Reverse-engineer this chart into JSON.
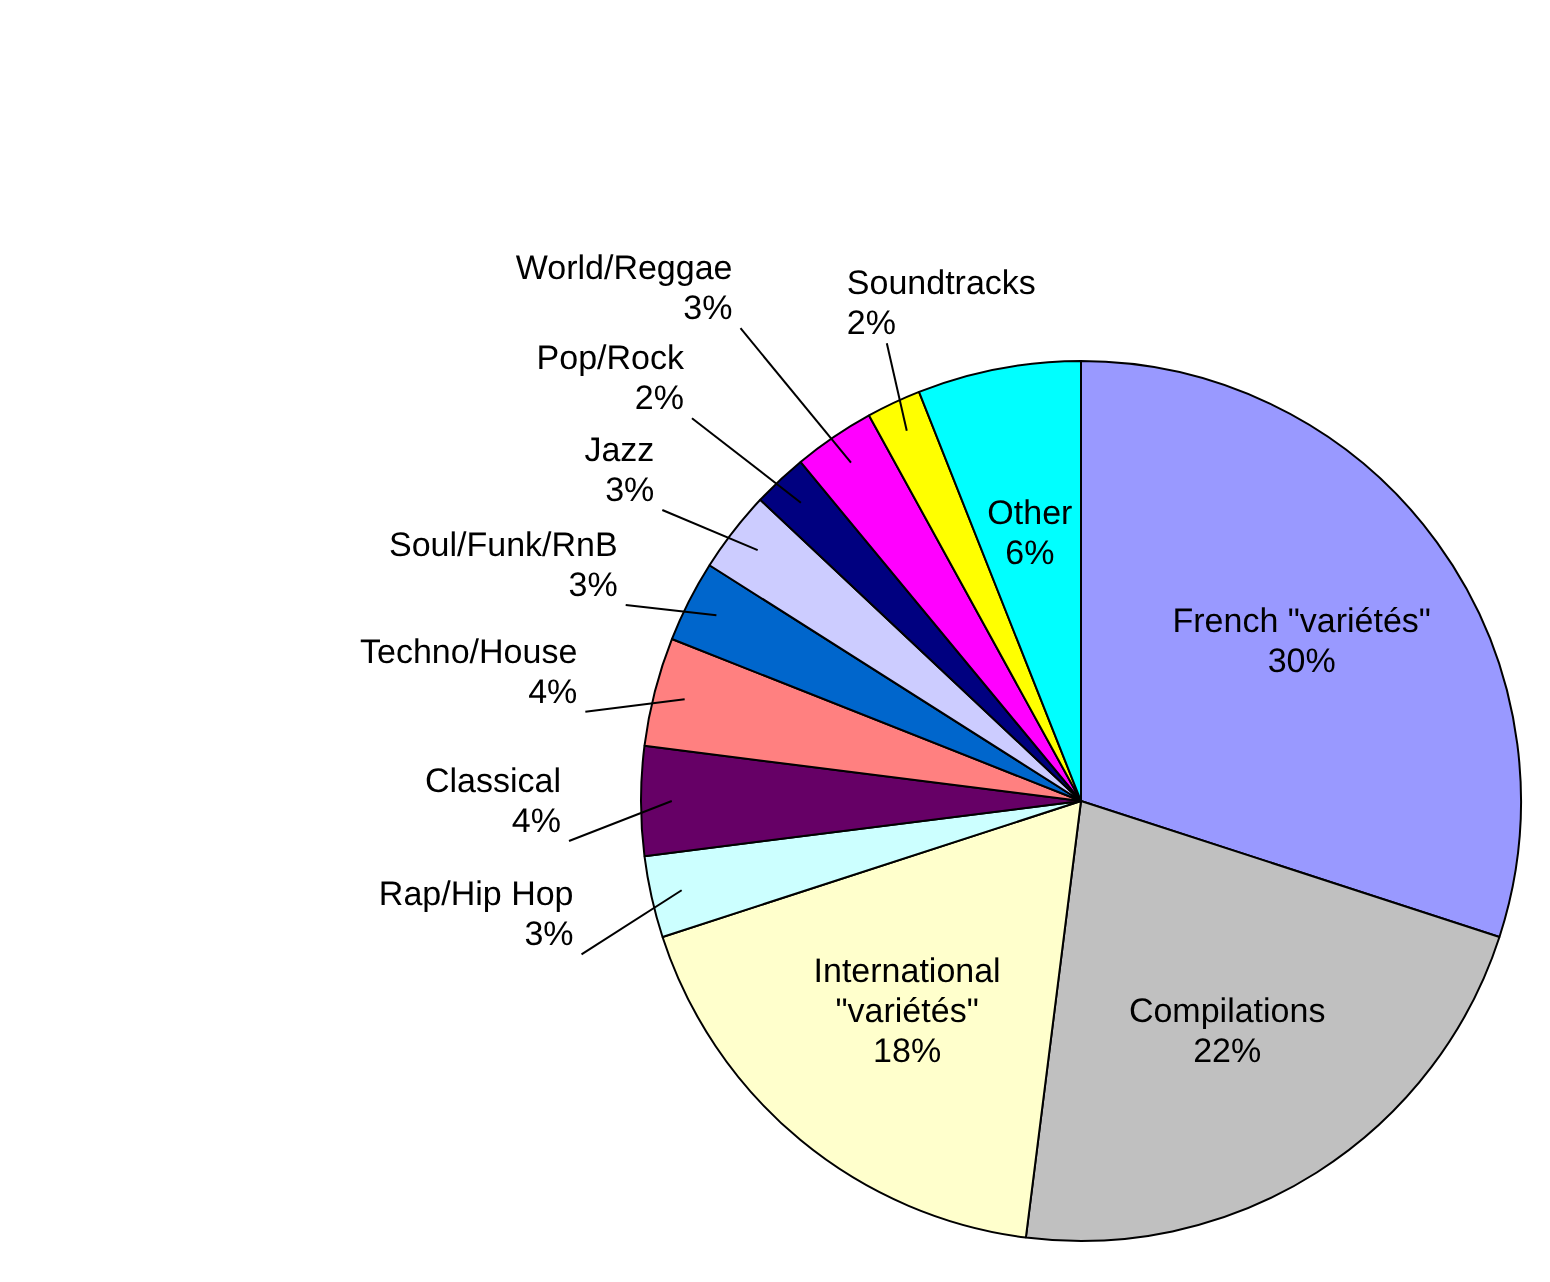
{
  "chart_data": {
    "type": "pie",
    "categories": [
      "French \"variétés\"",
      "Compilations",
      "International \"variétés\"",
      "Rap/Hip Hop",
      "Classical",
      "Techno/House",
      "Soul/Funk/RnB",
      "Jazz",
      "Pop/Rock",
      "World/Reggae",
      "Soundtracks",
      "Other"
    ],
    "values": [
      30,
      22,
      18,
      3,
      4,
      4,
      3,
      3,
      2,
      3,
      2,
      6
    ],
    "value_labels": [
      "30%",
      "22%",
      "18%",
      "3%",
      "4%",
      "4%",
      "3%",
      "3%",
      "2%",
      "3%",
      "2%",
      "6%"
    ],
    "colors": [
      "#9999ff",
      "#c0c0c0",
      "#ffffcc",
      "#ccffff",
      "#660066",
      "#ff8080",
      "#0066cc",
      "#ccccff",
      "#000080",
      "#ff00ff",
      "#ffff00",
      "#00ffff"
    ]
  }
}
